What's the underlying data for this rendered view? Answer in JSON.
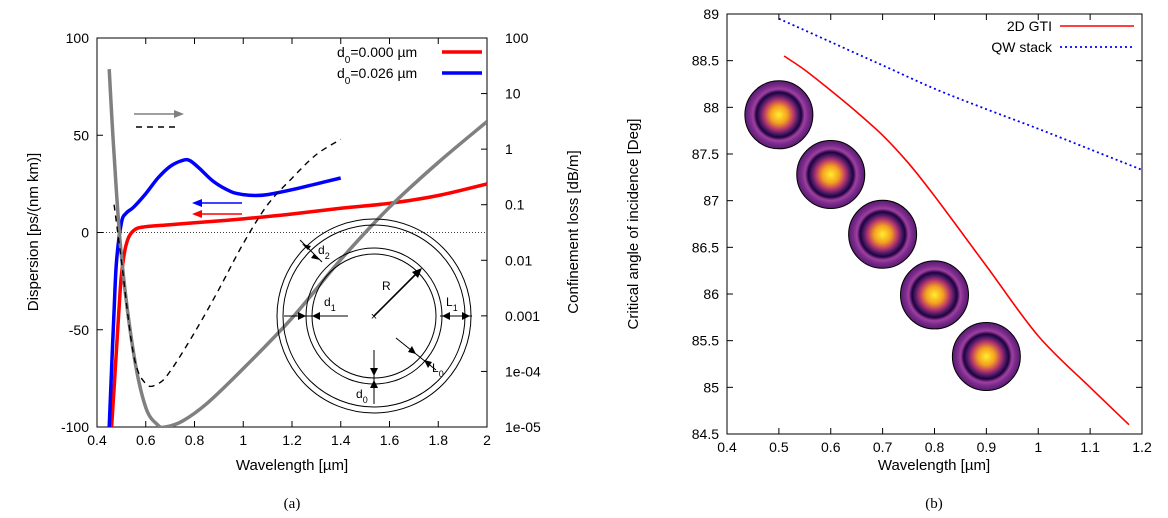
{
  "chart_data": [
    {
      "panel": "(a)",
      "type": "line",
      "xlabel": "Wavelength [µm]",
      "ylabel": "Dispersion [ps/(nm km)]",
      "y2label": "Confinement loss [dB/m]",
      "xlim": [
        0.4,
        2.0
      ],
      "ylim": [
        -100,
        100
      ],
      "y2lim_log10": [
        -5,
        2
      ],
      "x_ticks": [
        "0.4",
        "0.6",
        "0.8",
        "1",
        "1.2",
        "1.4",
        "1.6",
        "1.8",
        "2"
      ],
      "y_ticks": [
        "-100",
        "-50",
        "0",
        "50",
        "100"
      ],
      "y2_ticks": [
        "1e-05",
        "1e-04",
        "0.001",
        "0.01",
        "0.1",
        "1",
        "10",
        "100"
      ],
      "legend_position": "top-right",
      "grid": false,
      "zero_line": true,
      "legend": [
        {
          "sub": "0",
          "value": "=0.000 µm",
          "color": "#ff0000"
        },
        {
          "sub": "0",
          "value": "=0.026 µm",
          "color": "#0000ff"
        }
      ],
      "series": [
        {
          "axis": "left",
          "color": "#ff0000",
          "x": [
            0.46,
            0.47,
            0.48,
            0.49,
            0.5,
            0.52,
            0.55,
            0.6,
            0.7,
            0.8,
            1.0,
            1.2,
            1.4,
            1.6,
            1.8,
            2.0
          ],
          "y": [
            -100,
            -80,
            -60,
            -40,
            -22,
            -6,
            1,
            3,
            4,
            5,
            7,
            9.5,
            12.5,
            15,
            19,
            25
          ]
        },
        {
          "axis": "left",
          "color": "#0000ff",
          "x": [
            0.45,
            0.46,
            0.47,
            0.48,
            0.5,
            0.52,
            0.55,
            0.6,
            0.65,
            0.7,
            0.75,
            0.78,
            0.82,
            0.88,
            0.95,
            1.0,
            1.05,
            1.1,
            1.2,
            1.3,
            1.4
          ],
          "y": [
            -100,
            -70,
            -40,
            -15,
            5,
            10,
            13,
            20,
            28,
            34,
            37,
            37,
            33,
            26,
            21,
            19.5,
            19,
            19.5,
            22,
            25,
            28
          ]
        },
        {
          "axis": "left",
          "color": "#808080",
          "x": [
            0.45,
            0.47,
            0.5,
            0.55,
            0.6,
            0.65,
            0.68,
            0.75,
            0.85,
            1.0,
            1.2,
            1.4,
            1.6,
            1.8,
            2.0
          ],
          "y": [
            84,
            40,
            -12,
            -62,
            -90,
            -99,
            -100,
            -97,
            -88,
            -70,
            -44,
            -14,
            13,
            36,
            57
          ]
        },
        {
          "axis": "right",
          "color": "#000000",
          "dash": "6,5",
          "x": [
            0.47,
            0.5,
            0.55,
            0.6,
            0.65,
            0.7,
            0.8,
            0.9,
            1.0,
            1.1,
            1.2,
            1.3,
            1.4
          ],
          "y": [
            0.1,
            0.01,
            0.0002,
            6e-05,
            6e-05,
            0.0001,
            0.0005,
            0.003,
            0.02,
            0.1,
            0.3,
            0.8,
            1.5
          ]
        }
      ],
      "inset": {
        "labels": [
          "d",
          "d",
          "d",
          "R",
          "L",
          "L"
        ],
        "subs": [
          "2",
          "1",
          "0",
          "",
          "1",
          "0"
        ]
      },
      "caption": "(a)"
    },
    {
      "panel": "(b)",
      "type": "line",
      "xlabel": "Wavelength [µm]",
      "ylabel": "Critical angle of incidence [Deg]",
      "xlim": [
        0.4,
        1.2
      ],
      "ylim": [
        84.5,
        89
      ],
      "x_ticks": [
        "0.4",
        "0.5",
        "0.6",
        "0.7",
        "0.8",
        "0.9",
        "1",
        "1.1",
        "1.2"
      ],
      "y_ticks": [
        "84.5",
        "85",
        "85.5",
        "86",
        "86.5",
        "87",
        "87.5",
        "88",
        "88.5",
        "89"
      ],
      "legend_position": "top-right",
      "grid": false,
      "series": [
        {
          "name": "2D GTI",
          "color": "#ff0000",
          "x": [
            0.51,
            0.55,
            0.6,
            0.65,
            0.7,
            0.75,
            0.8,
            0.9,
            1.0,
            1.1,
            1.175
          ],
          "y": [
            88.55,
            88.4,
            88.18,
            87.95,
            87.7,
            87.4,
            87.05,
            86.3,
            85.55,
            85.0,
            84.6
          ]
        },
        {
          "name": "QW stack",
          "color": "#0000ff",
          "dash": "2,3",
          "x": [
            0.5,
            0.6,
            0.7,
            0.8,
            0.9,
            1.0,
            1.1,
            1.2
          ],
          "y": [
            88.95,
            88.7,
            88.45,
            88.2,
            87.98,
            87.77,
            87.55,
            87.33
          ]
        }
      ],
      "mode_images": [
        {
          "x": 0.5,
          "y": 87.92
        },
        {
          "x": 0.6,
          "y": 87.28
        },
        {
          "x": 0.7,
          "y": 86.64
        },
        {
          "x": 0.8,
          "y": 85.99
        },
        {
          "x": 0.9,
          "y": 85.33
        }
      ],
      "caption": "(b)"
    }
  ]
}
